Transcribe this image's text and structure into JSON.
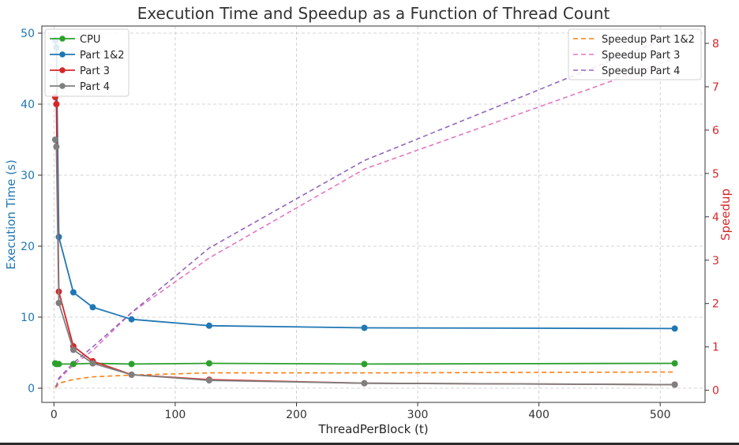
{
  "chart_data": {
    "type": "line",
    "title": "Execution Time and Speedup as a Function of Thread Count",
    "xlabel": "ThreadPerBlock (t)",
    "ylabel": "Execution Time (s)",
    "y2label": "Speedup",
    "xlim": [
      -10,
      537
    ],
    "ylim": [
      -2,
      51
    ],
    "y2lim": [
      -0.28,
      8.4
    ],
    "xticks": [
      0,
      100,
      200,
      300,
      400,
      500
    ],
    "yticks": [
      0,
      10,
      20,
      30,
      40,
      50
    ],
    "y2ticks": [
      0,
      1,
      2,
      3,
      4,
      5,
      6,
      7,
      8
    ],
    "grid": true,
    "legend_left_position": "top-left",
    "legend_right_position": "top-right",
    "x": [
      1,
      2,
      4,
      16,
      32,
      64,
      128,
      256,
      512
    ],
    "series": [
      {
        "name": "CPU",
        "axis": "left",
        "style": "solid-marker",
        "color": "#2ca02c",
        "values": [
          3.5,
          3.4,
          3.4,
          3.4,
          3.5,
          3.4,
          3.5,
          3.4,
          3.5
        ]
      },
      {
        "name": "Part 1&2",
        "axis": "left",
        "style": "solid-marker",
        "color": "#1f77b4",
        "values": [
          49,
          48,
          21.3,
          13.5,
          11.4,
          9.7,
          8.8,
          8.5,
          8.4
        ]
      },
      {
        "name": "Part 3",
        "axis": "left",
        "style": "solid-marker",
        "color": "#d62728",
        "values": [
          41,
          40,
          13.6,
          5.9,
          3.8,
          1.9,
          1.2,
          0.7,
          0.5
        ]
      },
      {
        "name": "Part 4",
        "axis": "left",
        "style": "solid-marker",
        "color": "#7f7f7f",
        "values": [
          35,
          34,
          12,
          5.4,
          3.5,
          1.9,
          1.1,
          0.7,
          0.5
        ]
      },
      {
        "name": "Speedup Part 1&2",
        "axis": "right",
        "style": "dashed",
        "color": "#ff7f0e",
        "values": [
          0.07,
          0.07,
          0.16,
          0.25,
          0.31,
          0.35,
          0.4,
          0.4,
          0.42
        ]
      },
      {
        "name": "Speedup Part 3",
        "axis": "right",
        "style": "dashed",
        "color": "#e377c2",
        "values": [
          0.09,
          0.09,
          0.25,
          0.58,
          0.92,
          1.79,
          3.05,
          5.1,
          7.65
        ]
      },
      {
        "name": "Speedup Part 4",
        "axis": "right",
        "style": "dashed",
        "color": "#9467bd",
        "values": [
          0.1,
          0.1,
          0.28,
          0.63,
          1.0,
          1.79,
          3.28,
          5.3,
          8.2
        ]
      }
    ]
  }
}
